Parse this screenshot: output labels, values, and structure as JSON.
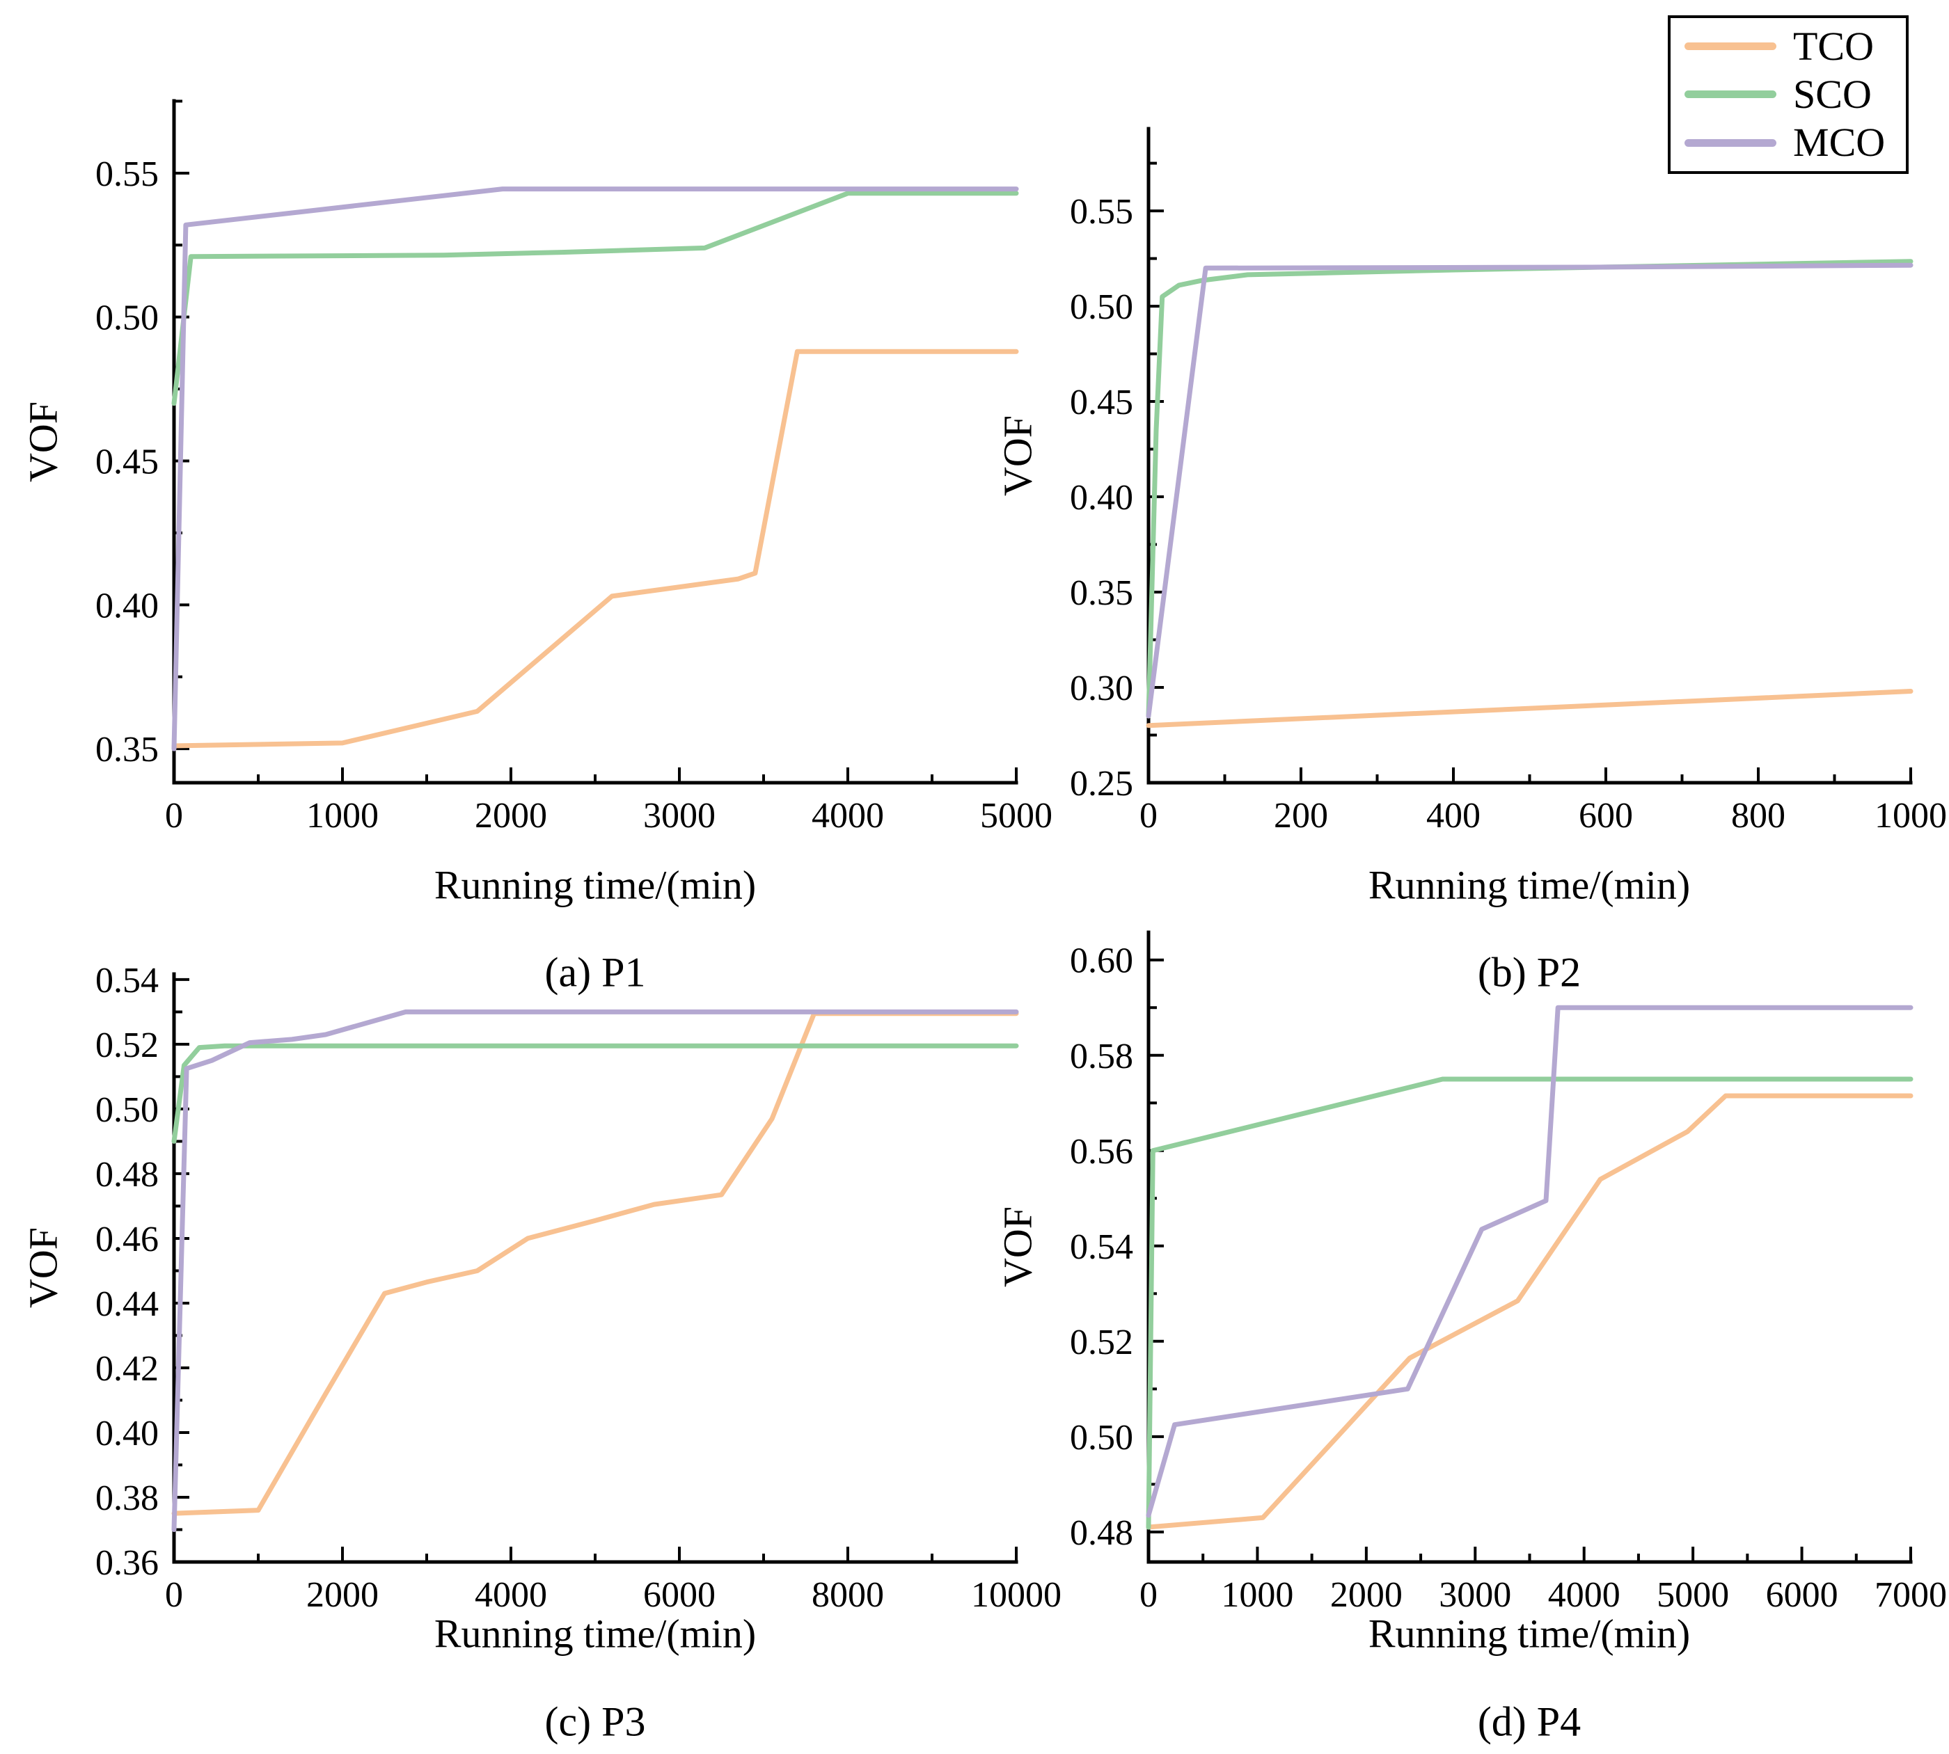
{
  "figure": {
    "background": "#ffffff",
    "axis_color": "#000000"
  },
  "legend": {
    "position": "top-right",
    "entries": [
      {
        "label": "TCO",
        "color": "#F8C191"
      },
      {
        "label": "SCO",
        "color": "#92CE9C"
      },
      {
        "label": "MCO",
        "color": "#B4A8D1"
      }
    ]
  },
  "chart_data": [
    {
      "id": "P1",
      "type": "line",
      "caption": "(a) P1",
      "xlabel": "Running time/(min)",
      "ylabel": "VOF",
      "grid": false,
      "xlim": [
        0,
        5000
      ],
      "ylim": [
        0.3382,
        0.5751
      ],
      "xticks": [
        0,
        1000,
        2000,
        3000,
        4000,
        5000
      ],
      "xtick_labels": [
        "0",
        "1000",
        "2000",
        "3000",
        "4000",
        "5000"
      ],
      "yticks": [
        0.35,
        0.4,
        0.45,
        0.5,
        0.55
      ],
      "ytick_labels": [
        "0.35",
        "0.40",
        "0.45",
        "0.50",
        "0.55"
      ],
      "series": [
        {
          "name": "TCO",
          "color": "#F8C191",
          "points": [
            [
              0,
              0.351
            ],
            [
              1000,
              0.352
            ],
            [
              1800,
              0.363
            ],
            [
              2600,
              0.403
            ],
            [
              3350,
              0.409
            ],
            [
              3450,
              0.411
            ],
            [
              3700,
              0.488
            ],
            [
              5000,
              0.488
            ]
          ]
        },
        {
          "name": "SCO",
          "color": "#92CE9C",
          "points": [
            [
              0,
              0.47
            ],
            [
              100,
              0.521
            ],
            [
              1600,
              0.5215
            ],
            [
              2300,
              0.5225
            ],
            [
              3150,
              0.524
            ],
            [
              4000,
              0.543
            ],
            [
              5000,
              0.543
            ]
          ]
        },
        {
          "name": "MCO",
          "color": "#B4A8D1",
          "points": [
            [
              0,
              0.35
            ],
            [
              70,
              0.532
            ],
            [
              1950,
              0.5445
            ],
            [
              5000,
              0.5445
            ]
          ]
        }
      ]
    },
    {
      "id": "P2",
      "type": "line",
      "caption": "(b) P2",
      "xlabel": "Running time/(min)",
      "ylabel": "VOF",
      "grid": false,
      "xlim": [
        0,
        1000
      ],
      "ylim": [
        0.25,
        0.5931
      ],
      "xticks": [
        0,
        200,
        400,
        600,
        800,
        1000
      ],
      "xtick_labels": [
        "0",
        "200",
        "400",
        "600",
        "800",
        "1000"
      ],
      "yticks": [
        0.25,
        0.3,
        0.35,
        0.4,
        0.45,
        0.5,
        0.55
      ],
      "ytick_labels": [
        "0.25",
        "0.30",
        "0.35",
        "0.40",
        "0.45",
        "0.50",
        "0.55"
      ],
      "series": [
        {
          "name": "TCO",
          "color": "#F8C191",
          "points": [
            [
              0,
              0.28
            ],
            [
              1000,
              0.298
            ]
          ]
        },
        {
          "name": "SCO",
          "color": "#92CE9C",
          "points": [
            [
              0,
              0.285
            ],
            [
              10,
              0.435
            ],
            [
              18,
              0.505
            ],
            [
              40,
              0.511
            ],
            [
              70,
              0.5135
            ],
            [
              130,
              0.5165
            ],
            [
              400,
              0.519
            ],
            [
              1000,
              0.5235
            ]
          ]
        },
        {
          "name": "MCO",
          "color": "#B4A8D1",
          "points": [
            [
              0,
              0.285
            ],
            [
              75,
              0.52
            ],
            [
              600,
              0.5205
            ],
            [
              1000,
              0.5215
            ]
          ]
        }
      ]
    },
    {
      "id": "P3",
      "type": "line",
      "caption": "(c) P3",
      "xlabel": "Running time/(min)",
      "ylabel": "VOF",
      "grid": false,
      "xlim": [
        0,
        10000
      ],
      "ylim": [
        0.36,
        0.5417
      ],
      "xticks": [
        0,
        2000,
        4000,
        6000,
        8000,
        10000
      ],
      "xtick_labels": [
        "0",
        "2000",
        "4000",
        "6000",
        "8000",
        "10000"
      ],
      "yticks": [
        0.36,
        0.38,
        0.4,
        0.42,
        0.44,
        0.46,
        0.48,
        0.5,
        0.52,
        0.54
      ],
      "ytick_labels": [
        "0.36",
        "0.38",
        "0.40",
        "0.42",
        "0.44",
        "0.46",
        "0.48",
        "0.50",
        "0.52",
        "0.54"
      ],
      "series": [
        {
          "name": "TCO",
          "color": "#F8C191",
          "points": [
            [
              0,
              0.375
            ],
            [
              1000,
              0.376
            ],
            [
              1800,
              0.412
            ],
            [
              2500,
              0.443
            ],
            [
              3000,
              0.4465
            ],
            [
              3600,
              0.45
            ],
            [
              4200,
              0.46
            ],
            [
              5000,
              0.4655
            ],
            [
              5700,
              0.4705
            ],
            [
              6500,
              0.4735
            ],
            [
              7100,
              0.497
            ],
            [
              7600,
              0.5295
            ],
            [
              10000,
              0.5295
            ]
          ]
        },
        {
          "name": "SCO",
          "color": "#92CE9C",
          "points": [
            [
              0,
              0.49
            ],
            [
              120,
              0.5135
            ],
            [
              300,
              0.519
            ],
            [
              600,
              0.5195
            ],
            [
              10000,
              0.5195
            ]
          ]
        },
        {
          "name": "MCO",
          "color": "#B4A8D1",
          "points": [
            [
              0,
              0.37
            ],
            [
              150,
              0.5125
            ],
            [
              450,
              0.515
            ],
            [
              900,
              0.5205
            ],
            [
              1400,
              0.5215
            ],
            [
              1800,
              0.523
            ],
            [
              2750,
              0.53
            ],
            [
              10000,
              0.53
            ]
          ]
        }
      ]
    },
    {
      "id": "P4",
      "type": "line",
      "caption": "(d) P4",
      "xlabel": "Running time/(min)",
      "ylabel": "VOF",
      "grid": false,
      "xlim": [
        0,
        7000
      ],
      "ylim": [
        0.4737,
        0.6058
      ],
      "xticks": [
        0,
        1000,
        2000,
        3000,
        4000,
        5000,
        6000,
        7000
      ],
      "xtick_labels": [
        "0",
        "1000",
        "2000",
        "3000",
        "4000",
        "5000",
        "6000",
        "7000"
      ],
      "yticks": [
        0.48,
        0.5,
        0.52,
        0.54,
        0.56,
        0.58,
        0.6
      ],
      "ytick_labels": [
        "0.48",
        "0.50",
        "0.52",
        "0.54",
        "0.56",
        "0.58",
        "0.60"
      ],
      "series": [
        {
          "name": "TCO",
          "color": "#F8C191",
          "points": [
            [
              0,
              0.481
            ],
            [
              1050,
              0.483
            ],
            [
              2400,
              0.5165
            ],
            [
              3390,
              0.5285
            ],
            [
              4150,
              0.554
            ],
            [
              4950,
              0.564
            ],
            [
              5300,
              0.5715
            ],
            [
              7000,
              0.5715
            ]
          ]
        },
        {
          "name": "SCO",
          "color": "#92CE9C",
          "points": [
            [
              0,
              0.481
            ],
            [
              40,
              0.56
            ],
            [
              2700,
              0.575
            ],
            [
              7000,
              0.575
            ]
          ]
        },
        {
          "name": "MCO",
          "color": "#B4A8D1",
          "points": [
            [
              0,
              0.4835
            ],
            [
              240,
              0.5025
            ],
            [
              2380,
              0.51
            ],
            [
              3060,
              0.5435
            ],
            [
              3650,
              0.5495
            ],
            [
              3760,
              0.59
            ],
            [
              7000,
              0.59
            ]
          ]
        }
      ]
    }
  ]
}
